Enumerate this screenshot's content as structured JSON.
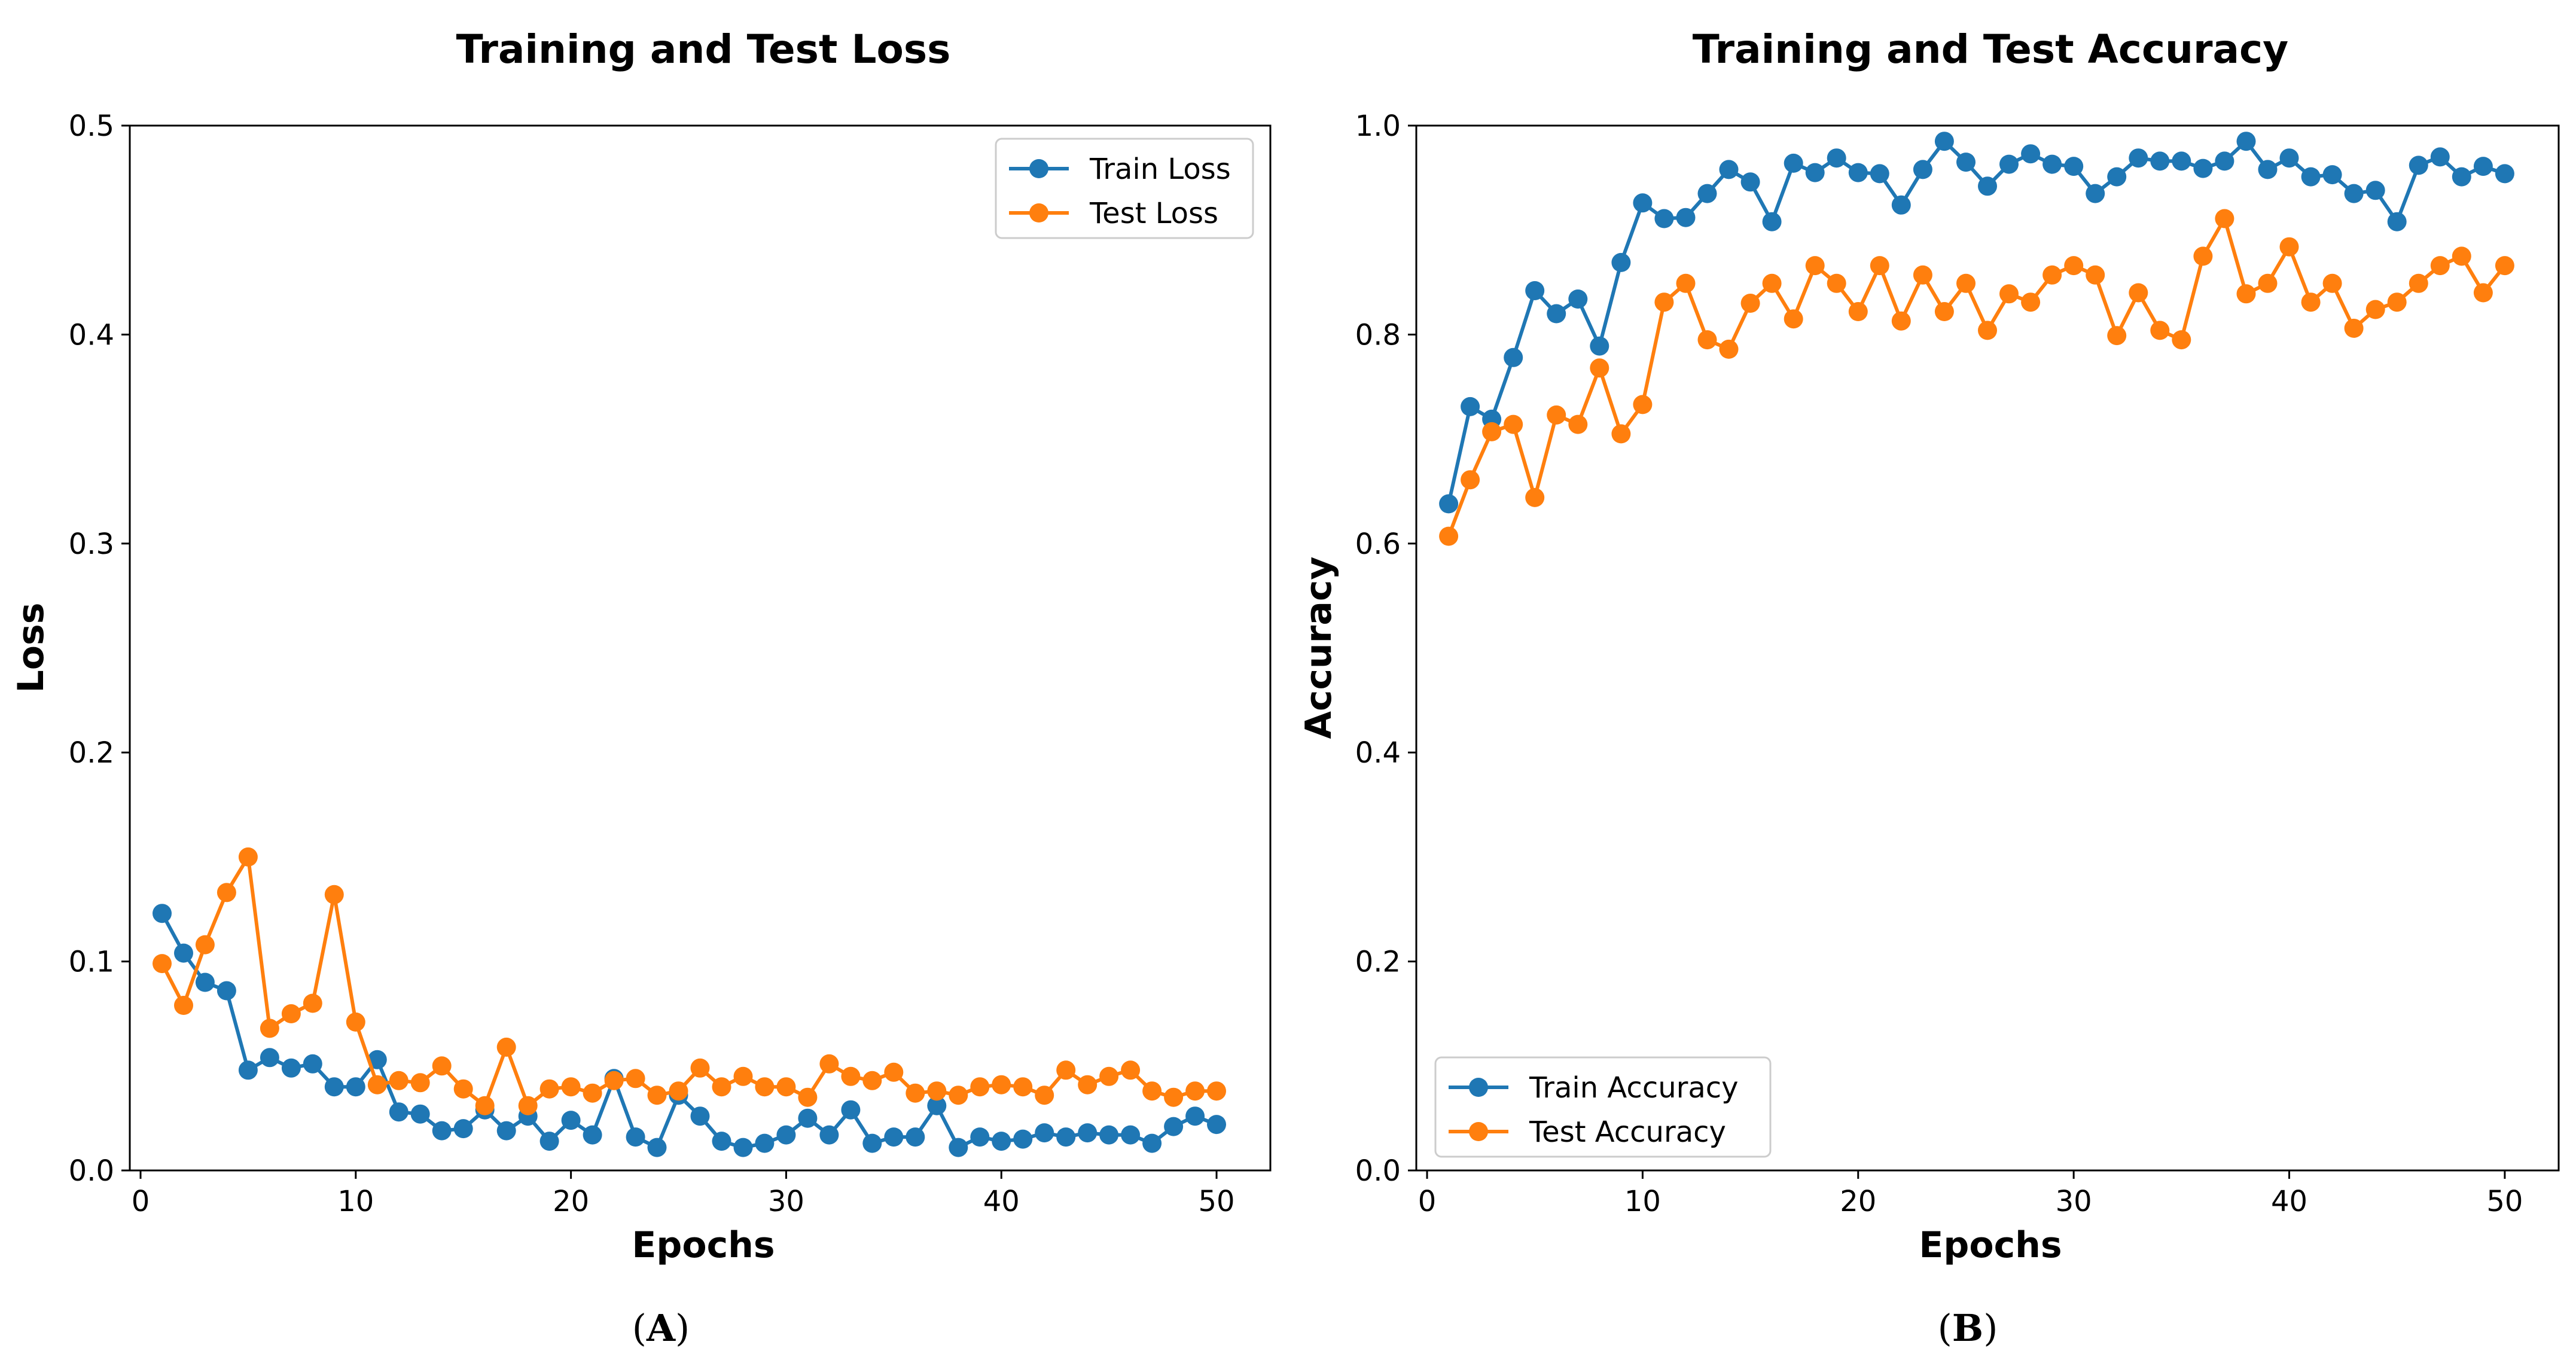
{
  "chart_data": [
    {
      "type": "line",
      "title": "Training and Test Loss",
      "xlabel": "Epochs",
      "ylabel": "Loss",
      "panel_label": "A",
      "xlim": [
        -0.5,
        52.5
      ],
      "ylim": [
        0,
        0.5
      ],
      "xticks": [
        0,
        10,
        20,
        30,
        40,
        50
      ],
      "yticks": [
        0.0,
        0.1,
        0.2,
        0.3,
        0.4,
        0.5
      ],
      "x_tick_labels": [
        "0",
        "10",
        "20",
        "30",
        "40",
        "50"
      ],
      "y_tick_labels": [
        "0.0",
        "0.1",
        "0.2",
        "0.3",
        "0.4",
        "0.5"
      ],
      "legend_position": "top-right",
      "grid": false,
      "x": [
        1,
        2,
        3,
        4,
        5,
        6,
        7,
        8,
        9,
        10,
        11,
        12,
        13,
        14,
        15,
        16,
        17,
        18,
        19,
        20,
        21,
        22,
        23,
        24,
        25,
        26,
        27,
        28,
        29,
        30,
        31,
        32,
        33,
        34,
        35,
        36,
        37,
        38,
        39,
        40,
        41,
        42,
        43,
        44,
        45,
        46,
        47,
        48,
        49,
        50
      ],
      "series": [
        {
          "name": "Train Loss",
          "color": "#1f77b4",
          "values": [
            0.123,
            0.104,
            0.09,
            0.086,
            0.048,
            0.054,
            0.049,
            0.051,
            0.04,
            0.04,
            0.053,
            0.028,
            0.027,
            0.019,
            0.02,
            0.029,
            0.019,
            0.026,
            0.014,
            0.024,
            0.017,
            0.044,
            0.016,
            0.011,
            0.036,
            0.026,
            0.014,
            0.011,
            0.013,
            0.017,
            0.025,
            0.017,
            0.029,
            0.013,
            0.016,
            0.016,
            0.031,
            0.011,
            0.016,
            0.014,
            0.015,
            0.018,
            0.016,
            0.018,
            0.017,
            0.017,
            0.013,
            0.021,
            0.026,
            0.022
          ]
        },
        {
          "name": "Test Loss",
          "color": "#ff7f0e",
          "values": [
            0.099,
            0.079,
            0.108,
            0.133,
            0.15,
            0.068,
            0.075,
            0.08,
            0.132,
            0.071,
            0.041,
            0.043,
            0.042,
            0.05,
            0.039,
            0.031,
            0.059,
            0.031,
            0.039,
            0.04,
            0.037,
            0.043,
            0.044,
            0.036,
            0.038,
            0.049,
            0.04,
            0.045,
            0.04,
            0.04,
            0.035,
            0.051,
            0.045,
            0.043,
            0.047,
            0.037,
            0.038,
            0.036,
            0.04,
            0.041,
            0.04,
            0.036,
            0.048,
            0.041,
            0.045,
            0.048,
            0.038,
            0.035,
            0.038,
            0.038
          ]
        }
      ]
    },
    {
      "type": "line",
      "title": "Training and Test Accuracy",
      "xlabel": "Epochs",
      "ylabel": "Accuracy",
      "panel_label": "B",
      "xlim": [
        -0.5,
        52.5
      ],
      "ylim": [
        0,
        1.0
      ],
      "xticks": [
        0,
        10,
        20,
        30,
        40,
        50
      ],
      "yticks": [
        0.0,
        0.2,
        0.4,
        0.6,
        0.8,
        1.0
      ],
      "x_tick_labels": [
        "0",
        "10",
        "20",
        "30",
        "40",
        "50"
      ],
      "y_tick_labels": [
        "0.0",
        "0.2",
        "0.4",
        "0.6",
        "0.8",
        "1.0"
      ],
      "legend_position": "bottom-left",
      "grid": false,
      "x": [
        1,
        2,
        3,
        4,
        5,
        6,
        7,
        8,
        9,
        10,
        11,
        12,
        13,
        14,
        15,
        16,
        17,
        18,
        19,
        20,
        21,
        22,
        23,
        24,
        25,
        26,
        27,
        28,
        29,
        30,
        31,
        32,
        33,
        34,
        35,
        36,
        37,
        38,
        39,
        40,
        41,
        42,
        43,
        44,
        45,
        46,
        47,
        48,
        49,
        50
      ],
      "series": [
        {
          "name": "Train Accuracy",
          "color": "#1f77b4",
          "values": [
            0.638,
            0.731,
            0.719,
            0.778,
            0.842,
            0.82,
            0.834,
            0.789,
            0.869,
            0.926,
            0.911,
            0.912,
            0.935,
            0.958,
            0.946,
            0.908,
            0.964,
            0.955,
            0.969,
            0.955,
            0.954,
            0.924,
            0.958,
            0.985,
            0.965,
            0.942,
            0.963,
            0.973,
            0.963,
            0.961,
            0.935,
            0.951,
            0.969,
            0.966,
            0.966,
            0.959,
            0.966,
            0.985,
            0.958,
            0.969,
            0.951,
            0.953,
            0.935,
            0.938,
            0.908,
            0.962,
            0.97,
            0.951,
            0.961,
            0.954
          ]
        },
        {
          "name": "Test Accuracy",
          "color": "#ff7f0e",
          "values": [
            0.607,
            0.661,
            0.707,
            0.714,
            0.644,
            0.723,
            0.714,
            0.768,
            0.705,
            0.733,
            0.831,
            0.849,
            0.795,
            0.786,
            0.83,
            0.849,
            0.815,
            0.866,
            0.849,
            0.822,
            0.866,
            0.813,
            0.857,
            0.822,
            0.849,
            0.804,
            0.839,
            0.831,
            0.857,
            0.866,
            0.857,
            0.799,
            0.84,
            0.804,
            0.795,
            0.875,
            0.911,
            0.839,
            0.849,
            0.884,
            0.831,
            0.849,
            0.806,
            0.824,
            0.831,
            0.849,
            0.866,
            0.875,
            0.84,
            0.866
          ]
        }
      ]
    }
  ]
}
